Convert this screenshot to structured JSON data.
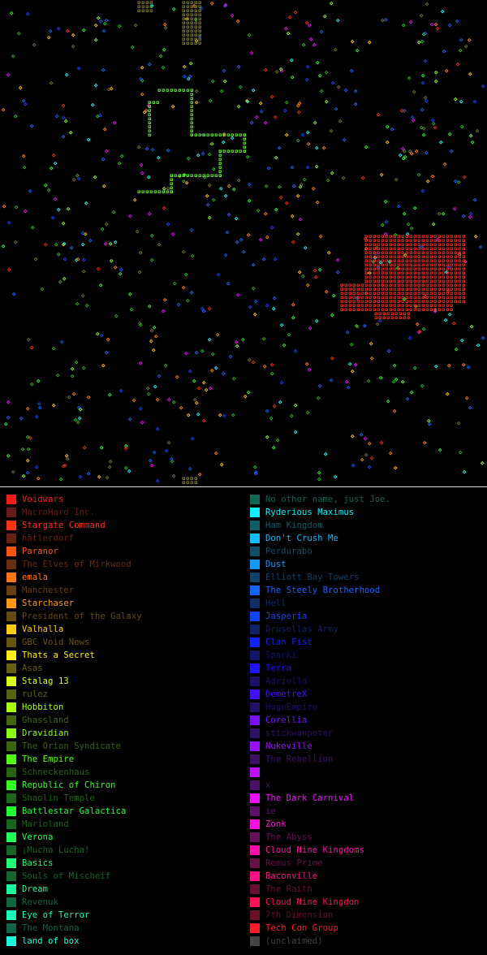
{
  "map": {
    "background": "#000000",
    "clusters": [
      {
        "name": "Stargate Command",
        "color": "#ff3320",
        "note": "dense red block"
      },
      {
        "name": "Dravidian",
        "color": "#77ff33",
        "note": "green outline path"
      },
      {
        "name": "GBC Void News",
        "color": "#888833",
        "note": "olive blocks"
      }
    ]
  },
  "legend": {
    "left": [
      {
        "name": "Voidwars",
        "color": "#ff1a1a",
        "bright": true
      },
      {
        "name": "MacroHard Inc.",
        "color": "#661a1a",
        "bright": false
      },
      {
        "name": "Stargate Command",
        "color": "#ff3311",
        "bright": true
      },
      {
        "name": "hätlerdorf",
        "color": "#662211",
        "bright": false
      },
      {
        "name": "Paranor",
        "color": "#ff5511",
        "bright": true
      },
      {
        "name": "The Elves of Mirkwood",
        "color": "#662f11",
        "bright": false
      },
      {
        "name": "emala",
        "color": "#ff7711",
        "bright": true
      },
      {
        "name": "Manchester",
        "color": "#663f11",
        "bright": false
      },
      {
        "name": "Starchaser",
        "color": "#ff9911",
        "bright": true
      },
      {
        "name": "President of the Galaxy",
        "color": "#664a11",
        "bright": false
      },
      {
        "name": "Valhalla",
        "color": "#ffcc11",
        "bright": true
      },
      {
        "name": "GBC Void News",
        "color": "#665511",
        "bright": false
      },
      {
        "name": "Thats a Secret",
        "color": "#ffee11",
        "bright": true
      },
      {
        "name": "Asas",
        "color": "#666111",
        "bright": false
      },
      {
        "name": "Stalag 13",
        "color": "#ddff11",
        "bright": true
      },
      {
        "name": "rulez",
        "color": "#556611",
        "bright": false
      },
      {
        "name": "Hobbiton",
        "color": "#aaff11",
        "bright": true
      },
      {
        "name": "Ghassland",
        "color": "#446611",
        "bright": false
      },
      {
        "name": "Dravidian",
        "color": "#88ff11",
        "bright": true
      },
      {
        "name": "The Orion Syndicate",
        "color": "#3a6611",
        "bright": false
      },
      {
        "name": "The Empire",
        "color": "#55ff11",
        "bright": true
      },
      {
        "name": "Schneckenhaus",
        "color": "#2a6611",
        "bright": false
      },
      {
        "name": "Republic of Chiron",
        "color": "#33ff22",
        "bright": true
      },
      {
        "name": "Shaolin Temple",
        "color": "#1d6615",
        "bright": false
      },
      {
        "name": "Battlestar Galactica",
        "color": "#22ff33",
        "bright": true
      },
      {
        "name": "Marioland",
        "color": "#156620",
        "bright": false
      },
      {
        "name": "Verona",
        "color": "#22ff55",
        "bright": true
      },
      {
        "name": "¡Mucha Lucha!",
        "color": "#156625",
        "bright": false
      },
      {
        "name": "Basics",
        "color": "#22ff77",
        "bright": true
      },
      {
        "name": "Souls of Mischeif",
        "color": "#15662f",
        "bright": false
      },
      {
        "name": "Dream",
        "color": "#11ff99",
        "bright": true
      },
      {
        "name": "Revenuk",
        "color": "#11663d",
        "bright": false
      },
      {
        "name": "Eye of Terror",
        "color": "#11ffbb",
        "bright": true
      },
      {
        "name": "The Montana",
        "color": "#11664a",
        "bright": false
      },
      {
        "name": "land of box",
        "color": "#11ffdd",
        "bright": true
      }
    ],
    "right": [
      {
        "name": "No other name, just Joe.",
        "color": "#116655",
        "bright": false
      },
      {
        "name": "Ryderious Maximus",
        "color": "#11eeff",
        "bright": true
      },
      {
        "name": "Ham Kingdom",
        "color": "#115f66",
        "bright": false
      },
      {
        "name": "Don't Crush Me",
        "color": "#11bbff",
        "bright": true
      },
      {
        "name": "Perdurabo",
        "color": "#114f66",
        "bright": false
      },
      {
        "name": "Dust",
        "color": "#1199ff",
        "bright": true
      },
      {
        "name": "Elliott Bay Towers",
        "color": "#114166",
        "bright": false
      },
      {
        "name": "The Steely Brotherhood",
        "color": "#1166ff",
        "bright": true
      },
      {
        "name": "Hell",
        "color": "#112f66",
        "bright": false
      },
      {
        "name": "Jasperia",
        "color": "#1144ff",
        "bright": true
      },
      {
        "name": "Drusellas Army",
        "color": "#112266",
        "bright": false
      },
      {
        "name": "Clan Fist",
        "color": "#1122ff",
        "bright": true
      },
      {
        "name": "Sparki",
        "color": "#111666",
        "bright": false
      },
      {
        "name": "Terra",
        "color": "#2211ff",
        "bright": true
      },
      {
        "name": "Adriella",
        "color": "#181166",
        "bright": false
      },
      {
        "name": "DemetreX",
        "color": "#4411ff",
        "bright": true
      },
      {
        "name": "HugeEmpire",
        "color": "#221166",
        "bright": false
      },
      {
        "name": "Corellia",
        "color": "#7711ff",
        "bright": true
      },
      {
        "name": "stickwanpeter",
        "color": "#2f1166",
        "bright": false
      },
      {
        "name": "Nukeville",
        "color": "#9911ff",
        "bright": true
      },
      {
        "name": "The Rebellion",
        "color": "#3d1166",
        "bright": false
      },
      {
        "name": "",
        "color": "#bb11ff",
        "bright": true
      },
      {
        "name": "x",
        "color": "#4a1166",
        "bright": false
      },
      {
        "name": "The Dark Carnival",
        "color": "#ee11ff",
        "bright": true
      },
      {
        "name": "ie",
        "color": "#5a1166",
        "bright": false
      },
      {
        "name": "Zonk",
        "color": "#ff11dd",
        "bright": true
      },
      {
        "name": "The Abyss",
        "color": "#661155",
        "bright": false
      },
      {
        "name": "Cloud Nine Kingdoms",
        "color": "#ff11aa",
        "bright": true
      },
      {
        "name": "Remus Prime",
        "color": "#661144",
        "bright": false
      },
      {
        "name": "Baconville",
        "color": "#ff1188",
        "bright": true
      },
      {
        "name": "The Raith",
        "color": "#661133",
        "bright": false
      },
      {
        "name": "Cloud Nine Kingdon",
        "color": "#ff1155",
        "bright": true
      },
      {
        "name": "7th Dimension",
        "color": "#661125",
        "bright": false
      },
      {
        "name": "Tech Con Group",
        "color": "#ff1a2a",
        "bright": true
      },
      {
        "name": "(unclaimed)",
        "color": "#444444",
        "bright": false
      }
    ]
  }
}
